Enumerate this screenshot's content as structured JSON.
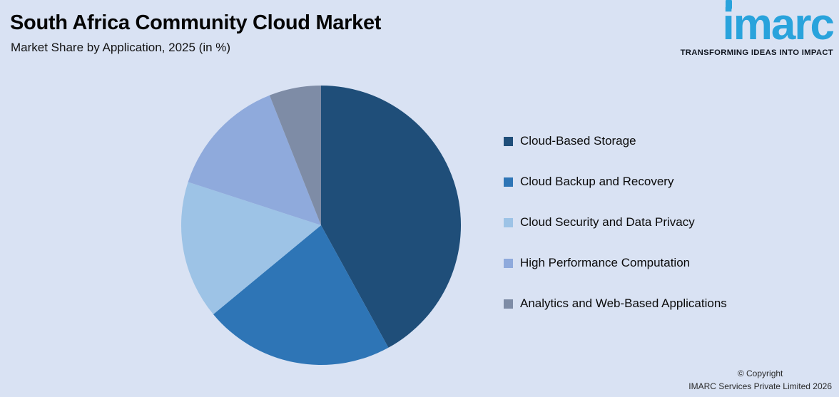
{
  "header": {
    "title": "South Africa Community Cloud Market",
    "subtitle": "Market Share by Application, 2025 (in %)"
  },
  "logo": {
    "name": "imarc",
    "tagline": "TRANSFORMING IDEAS INTO IMPACT",
    "color": "#29a3dc"
  },
  "chart_data": {
    "type": "pie",
    "title": "South Africa Community Cloud Market",
    "subtitle": "Market Share by Application, 2025 (in %)",
    "categories": [
      "Cloud-Based Storage",
      "Cloud Backup and Recovery",
      "Cloud Security and Data Privacy",
      "High Performance Computation",
      "Analytics and Web-Based Applications"
    ],
    "values": [
      42,
      22,
      16,
      14,
      6
    ],
    "values_note": "estimated from slice angles; no data labels shown",
    "colors": [
      "#1f4e79",
      "#2e75b6",
      "#9dc3e6",
      "#8faadc",
      "#7e8ca6"
    ],
    "start_angle_deg": -90,
    "direction": "clockwise",
    "legend_position": "right",
    "data_labels": false,
    "background": "#d9e2f3"
  },
  "footer": {
    "line1": "© Copyright",
    "line2": "IMARC Services Private Limited 2026"
  }
}
